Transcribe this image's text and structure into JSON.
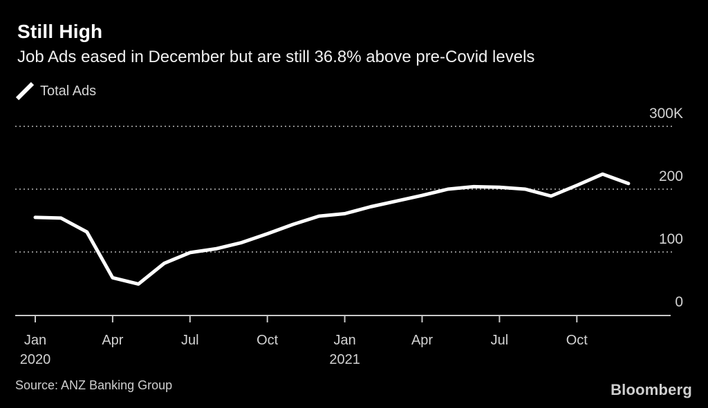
{
  "header": {
    "title": "Still High",
    "subtitle": "Job Ads eased in December but are still 36.8% above pre-Covid levels"
  },
  "legend": {
    "label": "Total Ads"
  },
  "chart_data": {
    "type": "line",
    "title": "Still High",
    "subtitle": "Job Ads eased in December but are still 36.8% above pre-Covid levels",
    "unit": "thousands of job ads (K)",
    "categories": [
      "Jan 2020",
      "Feb 2020",
      "Mar 2020",
      "Apr 2020",
      "May 2020",
      "Jun 2020",
      "Jul 2020",
      "Aug 2020",
      "Sep 2020",
      "Oct 2020",
      "Nov 2020",
      "Dec 2020",
      "Jan 2021",
      "Feb 2021",
      "Mar 2021",
      "Apr 2021",
      "May 2021",
      "Jun 2021",
      "Jul 2021",
      "Aug 2021",
      "Sep 2021",
      "Oct 2021",
      "Nov 2021",
      "Dec 2021"
    ],
    "series": [
      {
        "name": "Total Ads",
        "color": "#ffffff",
        "values": [
          155,
          154,
          132,
          59,
          49,
          82,
          99,
          105,
          115,
          129,
          144,
          157,
          161,
          172,
          181,
          190,
          200,
          204,
          203,
          200,
          189,
          206,
          224,
          209
        ]
      }
    ],
    "ylim": [
      0,
      330
    ],
    "y_ticks": [
      {
        "v": 300,
        "label": "300K"
      },
      {
        "v": 200,
        "label": "200"
      },
      {
        "v": 100,
        "label": "100"
      },
      {
        "v": 0,
        "label": "0"
      }
    ],
    "x_ticks": [
      {
        "i": 0,
        "month": "Jan",
        "year": "2020"
      },
      {
        "i": 3,
        "month": "Apr"
      },
      {
        "i": 6,
        "month": "Jul"
      },
      {
        "i": 9,
        "month": "Oct"
      },
      {
        "i": 12,
        "month": "Jan",
        "year": "2021"
      },
      {
        "i": 15,
        "month": "Apr"
      },
      {
        "i": 18,
        "month": "Jul"
      },
      {
        "i": 21,
        "month": "Oct"
      }
    ],
    "grid": "dotted-horizontal",
    "legend_position": "top-left",
    "colors": {
      "background": "#000000",
      "line": "#ffffff",
      "grid": "#8a8a8a",
      "axis": "#c9c9c9",
      "tick_label": "#d2d2d2"
    }
  },
  "footer": {
    "source": "Source: ANZ Banking Group",
    "brand": "Bloomberg"
  }
}
